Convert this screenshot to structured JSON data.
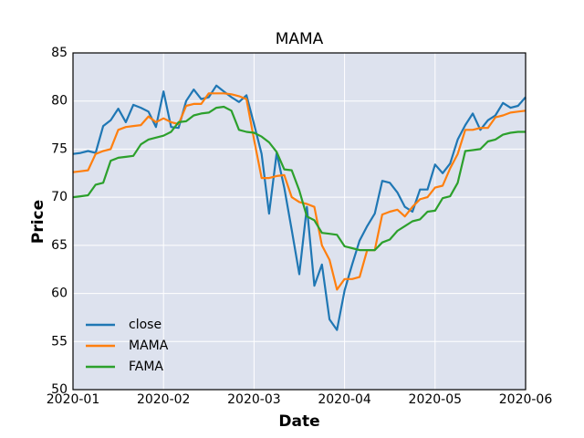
{
  "chart_data": {
    "type": "line",
    "title": "MAMA",
    "x_label": "Date",
    "y_label": "Price",
    "categories": [
      "2020-01",
      null,
      null,
      null,
      null,
      null,
      null,
      null,
      null,
      null,
      null,
      null,
      "2020-02",
      null,
      null,
      null,
      null,
      null,
      null,
      null,
      null,
      null,
      null,
      null,
      "2020-03",
      null,
      null,
      null,
      null,
      null,
      null,
      null,
      null,
      null,
      null,
      null,
      "2020-04",
      null,
      null,
      null,
      null,
      null,
      null,
      null,
      null,
      null,
      null,
      null,
      "2020-05",
      null,
      null,
      null,
      null,
      null,
      null,
      null,
      null,
      null,
      null,
      null,
      "2020-06"
    ],
    "series": [
      {
        "name": "close",
        "color": "#1f77b4",
        "values": [
          74.5,
          74.6,
          74.8,
          74.6,
          77.4,
          78,
          79.2,
          77.8,
          79.6,
          79.3,
          78.9,
          77.3,
          81,
          77.3,
          77.2,
          80,
          81.2,
          80.2,
          80.4,
          81.6,
          81,
          80.4,
          79.9,
          80.6,
          77.6,
          74.5,
          68.3,
          74.6,
          71,
          66.6,
          62,
          69,
          60.8,
          63,
          57.3,
          56.2,
          60.3,
          63,
          65.5,
          67,
          68.3,
          71.7,
          71.5,
          70.5,
          69,
          68.5,
          70.8,
          70.8,
          73.4,
          72.5,
          73.5,
          76,
          77.5,
          78.7,
          77,
          78,
          78.5,
          79.8,
          79.3,
          79.5,
          80.4
        ]
      },
      {
        "name": "MAMA",
        "color": "#ff7f0e",
        "values": [
          72.6,
          72.7,
          72.8,
          74.5,
          74.8,
          75,
          77,
          77.3,
          77.4,
          77.5,
          78.4,
          77.8,
          78.2,
          77.8,
          77.6,
          79.5,
          79.7,
          79.7,
          80.8,
          80.8,
          80.8,
          80.7,
          80.5,
          80.2,
          76,
          72,
          72,
          72.2,
          72.3,
          70,
          69.5,
          69.3,
          69,
          65,
          63.5,
          60.4,
          61.5,
          61.5,
          61.7,
          64.5,
          64.5,
          68.2,
          68.5,
          68.7,
          68,
          69,
          69.8,
          70,
          71,
          71.2,
          73,
          74.5,
          77,
          77,
          77.2,
          77.2,
          78.3,
          78.5,
          78.8,
          78.9,
          79
        ]
      },
      {
        "name": "FAMA",
        "color": "#2ca02c",
        "values": [
          70,
          70.1,
          70.2,
          71.3,
          71.5,
          73.8,
          74.1,
          74.2,
          74.3,
          75.5,
          76,
          76.2,
          76.4,
          76.8,
          77.8,
          77.9,
          78.5,
          78.7,
          78.8,
          79.3,
          79.4,
          79,
          77,
          76.8,
          76.7,
          76.3,
          75.7,
          74.7,
          72.9,
          72.8,
          70.7,
          68,
          67.6,
          66.3,
          66.2,
          66.1,
          64.9,
          64.7,
          64.5,
          64.5,
          64.5,
          65.3,
          65.6,
          66.5,
          67,
          67.5,
          67.7,
          68.5,
          68.6,
          69.9,
          70.1,
          71.5,
          74.8,
          74.9,
          75,
          75.8,
          76,
          76.5,
          76.7,
          76.8,
          76.8
        ]
      }
    ],
    "ylim": [
      50,
      85
    ],
    "yticks": [
      50,
      55,
      60,
      65,
      70,
      75,
      80,
      85
    ],
    "grid": true,
    "legend": "lower left"
  }
}
